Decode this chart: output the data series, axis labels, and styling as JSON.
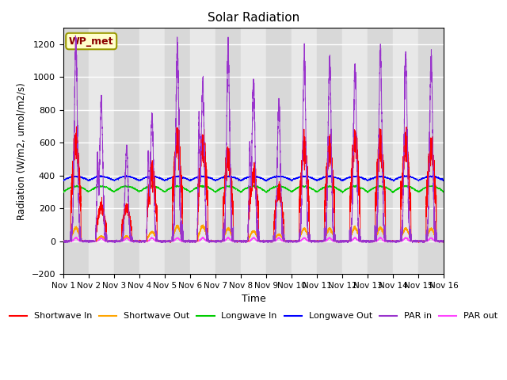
{
  "title": "Solar Radiation",
  "xlabel": "Time",
  "ylabel": "Radiation (W/m2, umol/m2/s)",
  "ylim": [
    -200,
    1300
  ],
  "yticks": [
    -200,
    0,
    200,
    400,
    600,
    800,
    1000,
    1200
  ],
  "xlim_start": 0,
  "xlim_end": 15,
  "xtick_labels": [
    "Nov 1",
    "Nov 2",
    "Nov 3",
    "Nov 4",
    "Nov 5",
    "Nov 6",
    "Nov 7",
    "Nov 8",
    "Nov 9",
    "Nov 10",
    "Nov 11",
    "Nov 12",
    "Nov 13",
    "Nov 14",
    "Nov 15",
    "Nov 16"
  ],
  "annotation_text": "WP_met",
  "colors": {
    "shortwave_in": "#ff0000",
    "shortwave_out": "#ffa500",
    "longwave_in": "#00cc00",
    "longwave_out": "#0000ff",
    "par_in": "#9933cc",
    "par_out": "#ff44ff"
  },
  "legend_labels": [
    "Shortwave In",
    "Shortwave Out",
    "Longwave In",
    "Longwave Out",
    "PAR in",
    "PAR out"
  ],
  "bg_color": "#e8e8e8",
  "stripe_color": "#d0d0d0",
  "grid_color": "#ffffff",
  "par_in_peaks": [
    1200,
    850,
    560,
    760,
    1180,
    950,
    1150,
    960,
    840,
    1120,
    1100,
    1060,
    1160,
    1130,
    1100
  ],
  "par_in_secondary": [
    0,
    460,
    0,
    490,
    0,
    700,
    0,
    530,
    0,
    0,
    0,
    0,
    0,
    0,
    0
  ],
  "sw_in_peaks": [
    610,
    210,
    200,
    430,
    620,
    600,
    500,
    410,
    300,
    560,
    560,
    610,
    600,
    590,
    560
  ],
  "sw_out_peaks": [
    80,
    30,
    30,
    55,
    90,
    90,
    75,
    60,
    40,
    75,
    75,
    80,
    80,
    75,
    75
  ],
  "lw_in_base": 300,
  "lw_out_base": 370,
  "figsize": [
    6.4,
    4.8
  ],
  "dpi": 100
}
